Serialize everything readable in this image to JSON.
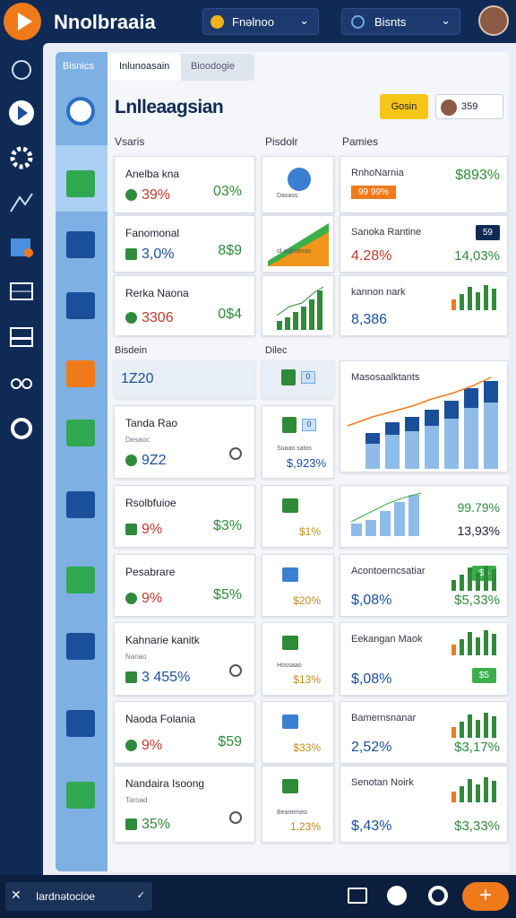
{
  "header": {
    "app_name": "Nnolbraaia",
    "dropdown_1": "Fnəlnoo",
    "dropdown_2": "Bisnts"
  },
  "sidebar_tab": "Bisnics",
  "tabs": [
    "Inlunoasain",
    "Bioodogie"
  ],
  "title": "Lnlleaagsian",
  "button": "Gosin",
  "user_count": "359",
  "columns": [
    "Vsaris",
    "Pisdolr",
    "Pamies"
  ],
  "sections": [
    "Bisdein",
    "Dilec"
  ],
  "left_cards": [
    {
      "name": "Anelba kna",
      "value": "39%",
      "change": "03%"
    },
    {
      "name": "Fanomonal",
      "value": "3,0%",
      "change": "8$9"
    },
    {
      "name": "Rerka Naona",
      "value": "3306",
      "change": "0$4"
    },
    {
      "value": "1Z20"
    },
    {
      "name": "Tanda Rao",
      "sub": "Desaoc",
      "value": "9Z2"
    },
    {
      "name": "Rsolbfuioe",
      "value": "9%",
      "change": "$3%"
    },
    {
      "name": "Pesabrare",
      "value": "9%",
      "change": "$5%"
    },
    {
      "name": "Kahnarie kanitk",
      "sub": "Nanao",
      "value": "3 455%"
    },
    {
      "name": "Naoda Folania",
      "value": "9%",
      "change": "$59"
    },
    {
      "name": "Nandaira Isoong",
      "sub": "Taroad",
      "value": "35%"
    }
  ],
  "middle_cards": [
    {
      "sub": "Dasass"
    },
    {
      "sub": "ol sopoanao"
    },
    {},
    {
      "badge": "0"
    },
    {
      "badge": "0",
      "sub": "Suaao satos",
      "value": "$,923%"
    },
    {
      "value": "$1%"
    },
    {
      "value": "$20%"
    },
    {
      "sub": "Hossaao",
      "value": "$13%"
    },
    {
      "value": "$33%"
    },
    {
      "sub": "Beanemeo",
      "value": "1,23%"
    }
  ],
  "right_cards": [
    {
      "name": "RnhoNarnia",
      "badge": "99 99%",
      "value": "$893%"
    },
    {
      "name": "Sanoka Rantine",
      "badge": "59",
      "value": "4.28%",
      "change": "14,03%"
    },
    {
      "name": "kannon nark",
      "value": "8,386"
    },
    {
      "name": "Masosaalktants"
    },
    {
      "value": "99.79%",
      "change": "13,93%"
    },
    {
      "name": "Acontoerncsatiar",
      "badge": "$6",
      "value": "$,08%",
      "change": "$5,33%"
    },
    {
      "name": "Eekangan Maok",
      "badge": "$5",
      "value": "$,08%"
    },
    {
      "name": "Bamernsnanar",
      "value": "2,52%",
      "change": "$3,17%"
    },
    {
      "name": "Senotan Noirk",
      "value": "$,43%",
      "change": "$3,33%"
    }
  ],
  "footer": {
    "label": "Iardnətocioe"
  }
}
